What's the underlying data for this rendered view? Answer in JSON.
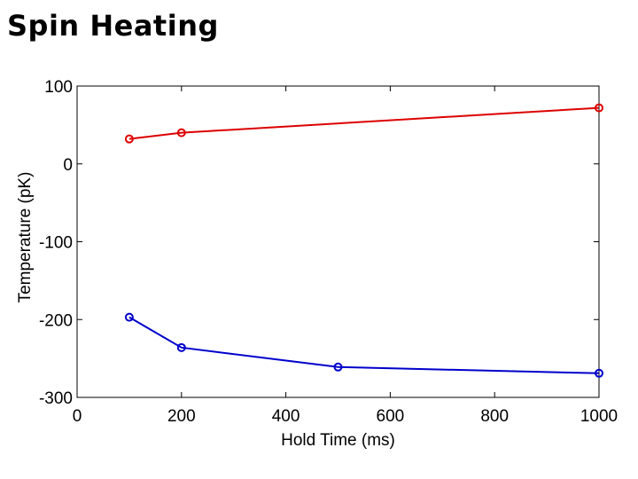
{
  "title": "Spin Heating",
  "chart_data": {
    "type": "line",
    "title": "",
    "xlabel": "Hold Time (ms)",
    "ylabel": "Temperature (pK)",
    "xlim": [
      0,
      1000
    ],
    "ylim": [
      -300,
      100
    ],
    "xticks": [
      0,
      200,
      400,
      600,
      800,
      1000
    ],
    "yticks": [
      -300,
      -200,
      -100,
      0,
      100
    ],
    "grid": false,
    "series": [
      {
        "name": "red series",
        "color": "#dd0000",
        "marker": "circle",
        "x": [
          100,
          200,
          1000
        ],
        "y": [
          32,
          40,
          72
        ]
      },
      {
        "name": "blue series",
        "color": "#0000cc",
        "marker": "circle",
        "x": [
          100,
          200,
          500,
          1000
        ],
        "y": [
          -197,
          -236,
          -261,
          -269
        ]
      }
    ]
  }
}
